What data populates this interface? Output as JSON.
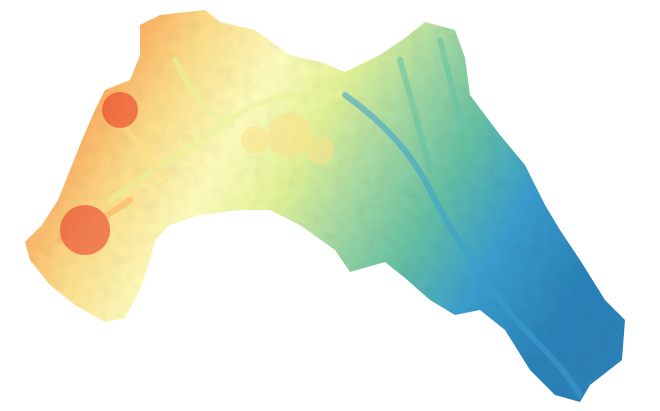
{
  "map": {
    "type": "elevation-raster",
    "background_color": "#ffffff",
    "color_ramp": {
      "name": "spectral-reversed",
      "stops": [
        "#e8321f",
        "#f46d43",
        "#fdae61",
        "#fee08b",
        "#ffffbf",
        "#e6f598",
        "#abdda4",
        "#66c2a5",
        "#3a9fd0",
        "#2b83ba"
      ],
      "high_end": "red",
      "low_end": "blue"
    },
    "legend": null,
    "labels": []
  }
}
